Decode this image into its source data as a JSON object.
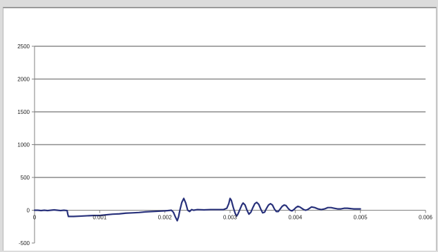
{
  "chart_data": {
    "type": "line",
    "title": "",
    "xlabel": "",
    "ylabel": "",
    "xlim": [
      0,
      0.006
    ],
    "ylim": [
      -500,
      2500
    ],
    "x_ticks": [
      0,
      0.001,
      0.002,
      0.003,
      0.004,
      0.005,
      0.006
    ],
    "x_tick_labels": [
      "0",
      "0.001",
      "0.002",
      "0.003",
      "0.004",
      "0.005",
      "0.006"
    ],
    "y_ticks": [
      -500,
      0,
      500,
      1000,
      1500,
      2000,
      2500
    ],
    "y_tick_labels": [
      "-500",
      "0",
      "500",
      "1000",
      "1500",
      "2000",
      "2500"
    ],
    "grid": "horizontal",
    "legend": "none",
    "colors": {
      "line": "#27307a",
      "grid": "#8a8a8a",
      "axis": "#808080"
    },
    "series": [
      {
        "x": [
          0,
          5e-05,
          0.0001,
          0.00015,
          0.0002,
          0.00025,
          0.0003,
          0.00035,
          0.0004,
          0.00045,
          0.0005,
          0.00051,
          0.00052,
          0.0006,
          0.0007,
          0.0008,
          0.0009,
          0.001,
          0.0011,
          0.0012,
          0.0013,
          0.0014,
          0.0015,
          0.0016,
          0.0017,
          0.0018,
          0.0019,
          0.002,
          0.00205,
          0.0021,
          0.00213,
          0.00216,
          0.00219,
          0.00221,
          0.00223,
          0.00226,
          0.00229,
          0.00232,
          0.00235,
          0.00238,
          0.00241,
          0.00244,
          0.0025,
          0.0026,
          0.0027,
          0.0028,
          0.0029,
          0.00295,
          0.00298,
          0.003,
          0.00302,
          0.00305,
          0.00308,
          0.0031,
          0.00312,
          0.00315,
          0.00318,
          0.0032,
          0.00323,
          0.00326,
          0.00329,
          0.00332,
          0.00335,
          0.00338,
          0.00341,
          0.00344,
          0.00347,
          0.0035,
          0.00353,
          0.00356,
          0.00359,
          0.00362,
          0.00365,
          0.00368,
          0.00371,
          0.00374,
          0.00377,
          0.0038,
          0.00383,
          0.00386,
          0.00389,
          0.00392,
          0.00395,
          0.00398,
          0.00401,
          0.00404,
          0.00407,
          0.0041,
          0.00413,
          0.00416,
          0.00419,
          0.00422,
          0.00425,
          0.0043,
          0.00435,
          0.0044,
          0.00445,
          0.0045,
          0.00455,
          0.0046,
          0.00465,
          0.0047,
          0.00475,
          0.0048,
          0.00485,
          0.0049,
          0.00495,
          0.005
        ],
        "y": [
          0,
          0,
          -5,
          0,
          -5,
          0,
          5,
          0,
          -5,
          0,
          -5,
          -60,
          -95,
          -95,
          -90,
          -85,
          -80,
          -80,
          -70,
          -60,
          -55,
          -45,
          -40,
          -35,
          -25,
          -20,
          -15,
          -10,
          -5,
          0,
          -30,
          -100,
          -160,
          -100,
          0,
          120,
          180,
          110,
          0,
          -20,
          10,
          0,
          10,
          5,
          10,
          10,
          10,
          30,
          100,
          180,
          150,
          40,
          -50,
          -90,
          -60,
          10,
          80,
          110,
          80,
          0,
          -60,
          -30,
          40,
          100,
          120,
          90,
          20,
          -40,
          -30,
          30,
          80,
          100,
          80,
          20,
          -20,
          -20,
          20,
          60,
          80,
          70,
          30,
          0,
          -10,
          10,
          40,
          60,
          50,
          30,
          10,
          0,
          10,
          30,
          50,
          40,
          20,
          10,
          20,
          40,
          40,
          30,
          20,
          20,
          30,
          30,
          25,
          20,
          20,
          20
        ]
      }
    ]
  }
}
